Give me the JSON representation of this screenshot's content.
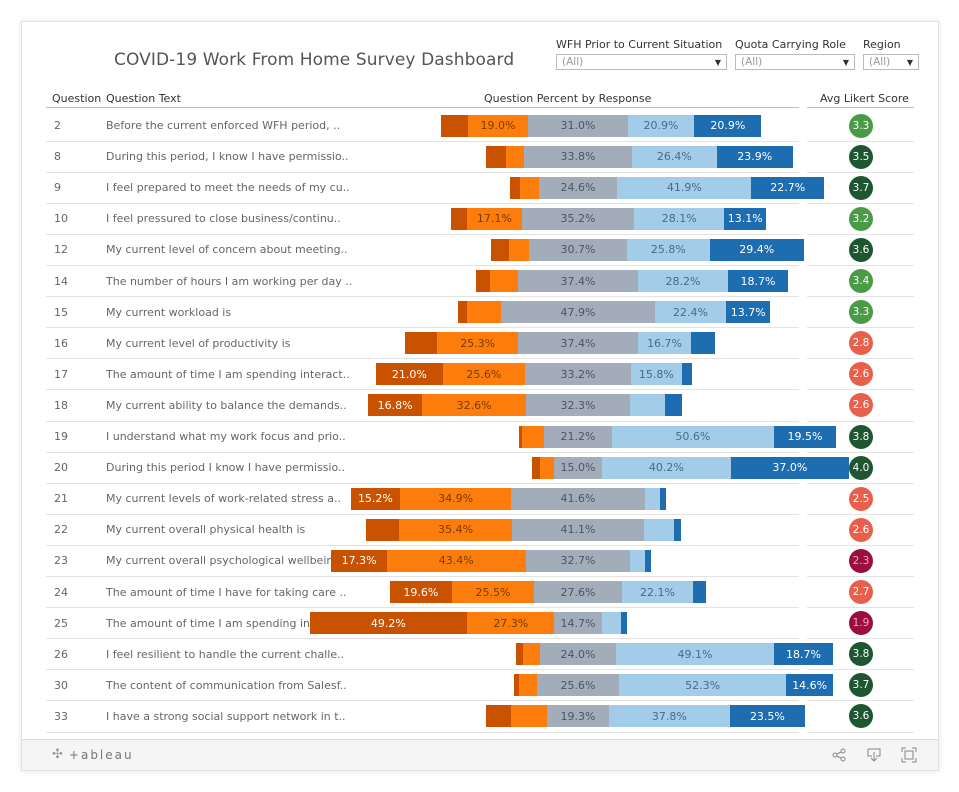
{
  "title": "COVID-19 Work From Home Survey Dashboard",
  "filters": [
    {
      "label": "WFH Prior to Current Situation",
      "value": "(All)"
    },
    {
      "label": "Quota Carrying Role",
      "value": "(All)"
    },
    {
      "label": "Region",
      "value": "(All)"
    }
  ],
  "columns": {
    "question": "Question",
    "question_text": "Question Text",
    "bars": "Question Percent by Response",
    "likert": "Avg Likert Score"
  },
  "colors": {
    "strongly_negative": "#c85200",
    "negative": "#fc7d0b",
    "neutral": "#a3acb9",
    "positive": "#a3cce9",
    "strongly_positive": "#1f6db1",
    "likert_high": "#1e5631",
    "likert_mid_high": "#4a9a47",
    "likert_mid_low": "#e8604c",
    "likert_low": "#9c0e3b"
  },
  "footer": {
    "brand": "+ableau",
    "icons": [
      "share-icon",
      "download-icon",
      "fullscreen-icon"
    ]
  },
  "chart_data": {
    "type": "bar",
    "subtype": "diverging-stacked-100",
    "title": "Question Percent by Response",
    "series_order": [
      "Strongly Negative",
      "Negative",
      "Neutral",
      "Positive",
      "Strongly Positive"
    ],
    "rows": [
      {
        "q": "2",
        "text": "Before the current enforced WFH period, ..",
        "values": [
          8.3,
          19.0,
          31.0,
          20.9,
          20.9
        ],
        "labels": [
          "",
          "19.0%",
          "31.0%",
          "20.9%",
          "20.9%"
        ],
        "score": "3.3",
        "score_level": "mid_high"
      },
      {
        "q": "8",
        "text": "During this period, I know I have permissio..",
        "values": [
          6.5,
          5.5,
          33.8,
          26.4,
          23.9
        ],
        "labels": [
          "",
          "",
          "33.8%",
          "26.4%",
          "23.9%"
        ],
        "score": "3.5",
        "score_level": "high"
      },
      {
        "q": "9",
        "text": "I feel prepared to meet the needs of my cu..",
        "values": [
          3.0,
          5.8,
          24.6,
          41.9,
          22.7
        ],
        "labels": [
          "",
          "",
          "24.6%",
          "41.9%",
          "22.7%"
        ],
        "score": "3.7",
        "score_level": "high"
      },
      {
        "q": "10",
        "text": "I feel pressured to close business/continu..",
        "values": [
          5.0,
          17.1,
          35.2,
          28.1,
          13.1
        ],
        "labels": [
          "",
          "17.1%",
          "35.2%",
          "28.1%",
          "13.1%"
        ],
        "score": "3.2",
        "score_level": "mid_high"
      },
      {
        "q": "12",
        "text": "My current level of concern about meeting..",
        "values": [
          5.4,
          6.3,
          30.7,
          25.8,
          29.4
        ],
        "labels": [
          "",
          "",
          "30.7%",
          "25.8%",
          "29.4%"
        ],
        "score": "3.6",
        "score_level": "high"
      },
      {
        "q": "14",
        "text": "The number of hours I am working per day ..",
        "values": [
          4.4,
          8.8,
          37.4,
          28.2,
          18.7
        ],
        "labels": [
          "",
          "",
          "37.4%",
          "28.2%",
          "18.7%"
        ],
        "score": "3.4",
        "score_level": "mid_high"
      },
      {
        "q": "15",
        "text": "My current workload is",
        "values": [
          2.8,
          10.6,
          47.9,
          22.4,
          13.7
        ],
        "labels": [
          "",
          "",
          "47.9%",
          "22.4%",
          "13.7%"
        ],
        "score": "3.3",
        "score_level": "mid_high"
      },
      {
        "q": "16",
        "text": "My current level of productivity is",
        "values": [
          10.1,
          25.3,
          37.4,
          16.7,
          7.3
        ],
        "labels": [
          "",
          "25.3%",
          "37.4%",
          "16.7%",
          ""
        ],
        "score": "2.8",
        "score_level": "mid_low"
      },
      {
        "q": "17",
        "text": "The amount of time I am spending interact..",
        "values": [
          21.0,
          25.6,
          33.2,
          15.8,
          3.3
        ],
        "labels": [
          "21.0%",
          "25.6%",
          "33.2%",
          "15.8%",
          ""
        ],
        "score": "2.6",
        "score_level": "mid_low"
      },
      {
        "q": "18",
        "text": "My current ability to balance the demands..",
        "values": [
          16.8,
          32.6,
          32.3,
          11.0,
          5.2
        ],
        "labels": [
          "16.8%",
          "32.6%",
          "32.3%",
          "",
          ""
        ],
        "score": "2.6",
        "score_level": "mid_low"
      },
      {
        "q": "19",
        "text": "I understand what my work focus and prio..",
        "values": [
          1.1,
          6.8,
          21.2,
          50.6,
          19.5
        ],
        "labels": [
          "",
          "",
          "21.2%",
          "50.6%",
          "19.5%"
        ],
        "score": "3.8",
        "score_level": "high"
      },
      {
        "q": "20",
        "text": "During this period I know I have permissio..",
        "values": [
          2.5,
          4.4,
          15.0,
          40.2,
          37.0
        ],
        "labels": [
          "",
          "",
          "15.0%",
          "40.2%",
          "37.0%"
        ],
        "score": "4.0",
        "score_level": "high"
      },
      {
        "q": "21",
        "text": "My current levels of work-related stress a..",
        "values": [
          15.2,
          34.9,
          41.6,
          4.8,
          2.0
        ],
        "labels": [
          "15.2%",
          "34.9%",
          "41.6%",
          "",
          ""
        ],
        "score": "2.5",
        "score_level": "mid_low"
      },
      {
        "q": "22",
        "text": "My current overall physical health is",
        "values": [
          10.3,
          35.4,
          41.1,
          9.6,
          2.0
        ],
        "labels": [
          "",
          "35.4%",
          "41.1%",
          "",
          ""
        ],
        "score": "2.6",
        "score_level": "mid_low"
      },
      {
        "q": "23",
        "text": "My current overall psychological wellbein..",
        "values": [
          17.3,
          43.4,
          32.7,
          4.6,
          2.0
        ],
        "labels": [
          "17.3%",
          "43.4%",
          "32.7%",
          "",
          ""
        ],
        "score": "2.3",
        "score_level": "low"
      },
      {
        "q": "24",
        "text": "The amount of time I have for taking care ..",
        "values": [
          19.6,
          25.5,
          27.6,
          22.1,
          4.0
        ],
        "labels": [
          "19.6%",
          "25.5%",
          "27.6%",
          "22.1%",
          ""
        ],
        "score": "2.7",
        "score_level": "mid_low"
      },
      {
        "q": "25",
        "text": "The amount of time I am spending interact..",
        "values": [
          49.2,
          27.3,
          14.7,
          6.0,
          2.0
        ],
        "labels": [
          "49.2%",
          "27.3%",
          "14.7%",
          "",
          ""
        ],
        "score": "1.9",
        "score_level": "low"
      },
      {
        "q": "26",
        "text": "I feel resilient to handle the current challe..",
        "values": [
          2.3,
          5.1,
          24.0,
          49.1,
          18.7
        ],
        "labels": [
          "",
          "",
          "24.0%",
          "49.1%",
          "18.7%"
        ],
        "score": "3.8",
        "score_level": "high"
      },
      {
        "q": "30",
        "text": "The content of communication from Salesf..",
        "values": [
          1.6,
          5.7,
          25.6,
          52.3,
          14.6
        ],
        "labels": [
          "",
          "",
          "25.6%",
          "52.3%",
          "14.6%"
        ],
        "score": "3.7",
        "score_level": "high"
      },
      {
        "q": "33",
        "text": "I have a strong social support network in t..",
        "values": [
          7.8,
          11.4,
          19.3,
          37.8,
          23.5
        ],
        "labels": [
          "",
          "",
          "19.3%",
          "37.8%",
          "23.5%"
        ],
        "score": "3.6",
        "score_level": "high"
      }
    ]
  }
}
